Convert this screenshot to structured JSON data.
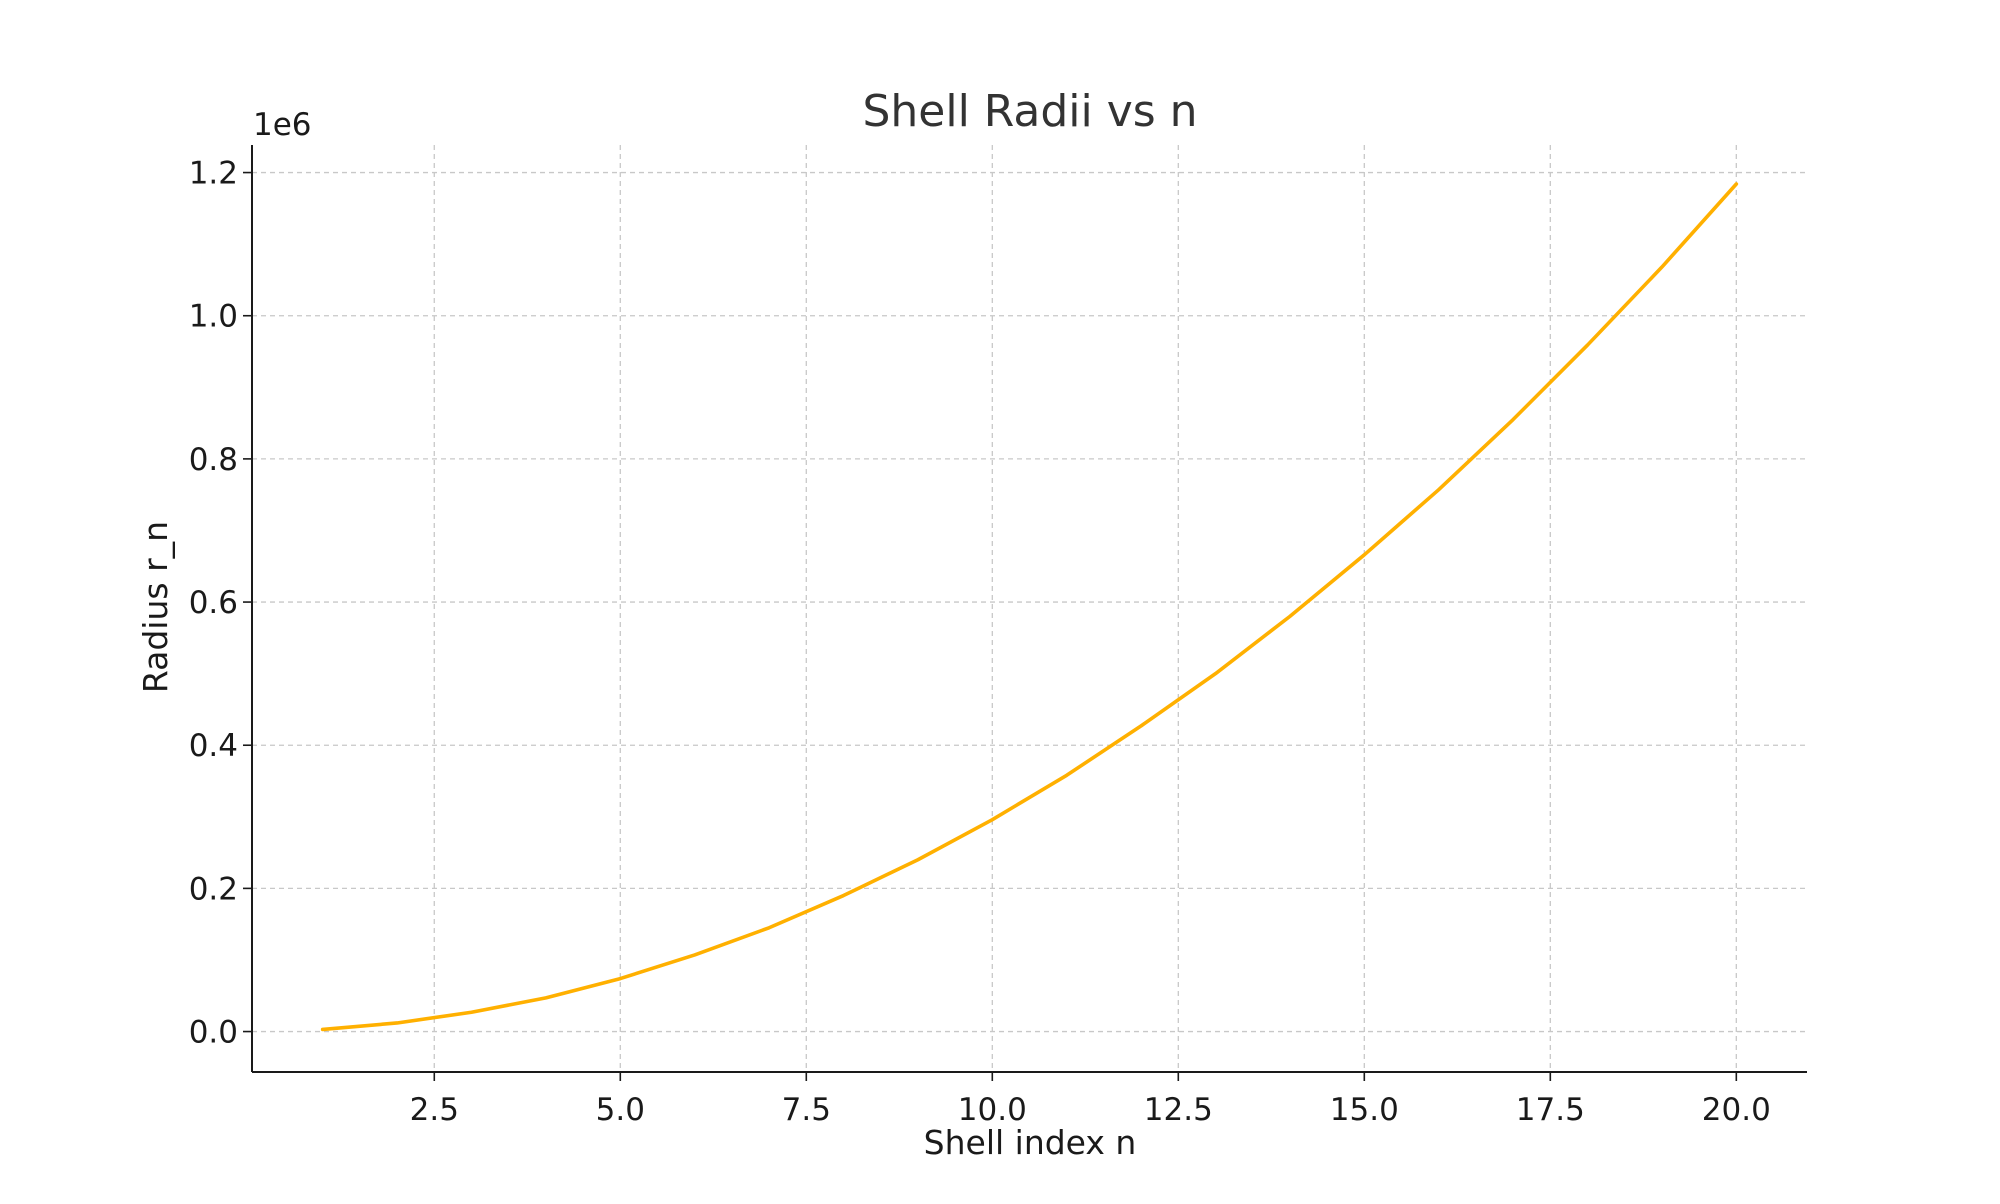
{
  "chart_data": {
    "type": "line",
    "title": "Shell Radii vs n",
    "xlabel": "Shell index n",
    "ylabel": "Radius r_n",
    "y_offset_label": "1e6",
    "xlim": [
      0.05,
      20.95
    ],
    "ylim": [
      -0.0565,
      1.2385
    ],
    "x_ticks": [
      2.5,
      5.0,
      7.5,
      10.0,
      12.5,
      15.0,
      17.5,
      20.0
    ],
    "x_tick_labels": [
      "2.5",
      "5.0",
      "7.5",
      "10.0",
      "12.5",
      "15.0",
      "17.5",
      "20.0"
    ],
    "y_ticks": [
      0.0,
      0.2,
      0.4,
      0.6,
      0.8,
      1.0,
      1.2
    ],
    "y_tick_labels": [
      "0.0",
      "0.2",
      "0.4",
      "0.6",
      "0.8",
      "1.0",
      "1.2"
    ],
    "grid": true,
    "legend": false,
    "color": "#ffb000",
    "series": [
      {
        "x": [
          1,
          2,
          3,
          4,
          5,
          6,
          7,
          8,
          9,
          10,
          11,
          12,
          13,
          14,
          15,
          16,
          17,
          18,
          19,
          20
        ],
        "values": [
          0.003,
          0.012,
          0.027,
          0.047,
          0.074,
          0.107,
          0.145,
          0.19,
          0.24,
          0.296,
          0.358,
          0.427,
          0.5,
          0.58,
          0.666,
          0.757,
          0.855,
          0.959,
          1.068,
          1.184
        ]
      }
    ]
  }
}
